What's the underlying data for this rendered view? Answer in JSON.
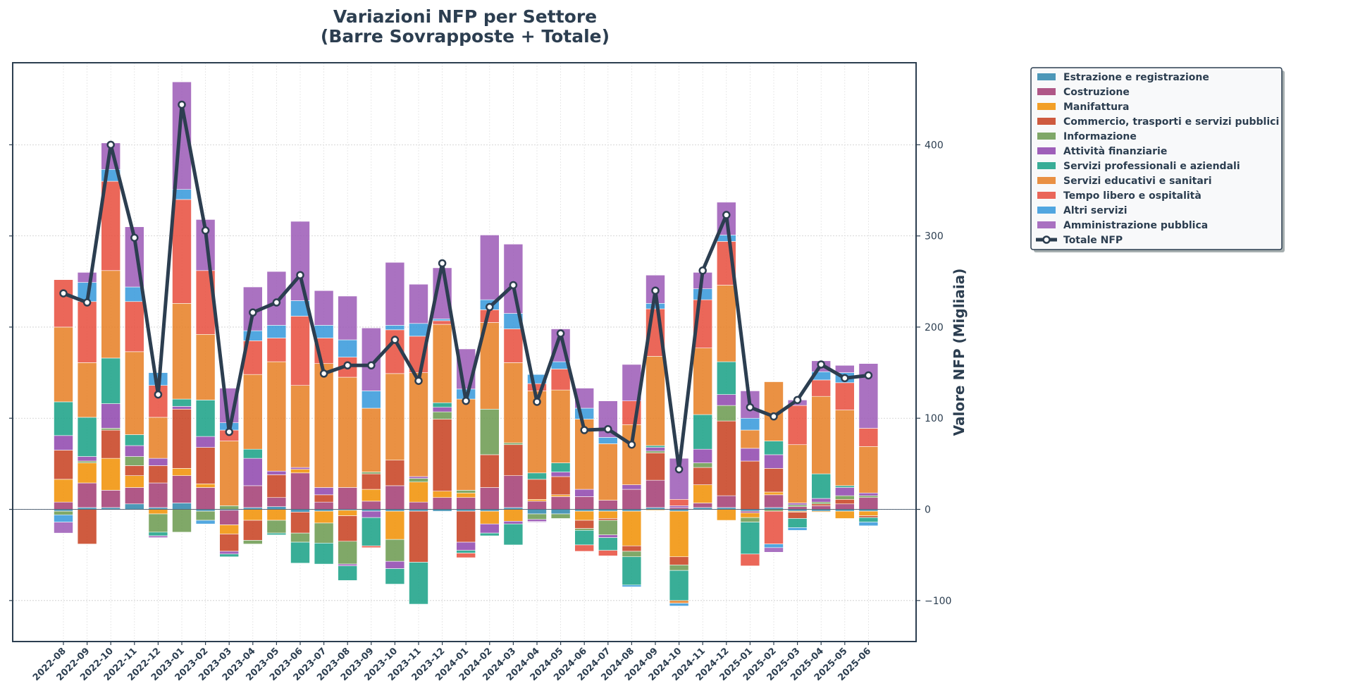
{
  "chart_data": {
    "type": "bar",
    "stacked": true,
    "title": [
      "Variazioni NFP per Settore",
      "(Barre Sovrapposte + Totale)"
    ],
    "xlabel": "",
    "ylabel": "Valore NFP (Migliaia)",
    "y_axis_position": "right",
    "ylim": [
      -145,
      490
    ],
    "yticks": [
      -100,
      0,
      100,
      200,
      300,
      400
    ],
    "ytick_labels": [
      "−100",
      "0",
      "100",
      "200",
      "300",
      "400"
    ],
    "grid": true,
    "legend_position": "outside-top-right",
    "categories": [
      "2022-08",
      "2022-09",
      "2022-10",
      "2022-11",
      "2022-12",
      "2023-01",
      "2023-02",
      "2023-03",
      "2023-04",
      "2023-05",
      "2023-06",
      "2023-07",
      "2023-08",
      "2023-09",
      "2023-10",
      "2023-11",
      "2023-12",
      "2024-01",
      "2024-02",
      "2024-03",
      "2024-04",
      "2024-05",
      "2024-06",
      "2024-07",
      "2024-08",
      "2024-09",
      "2024-10",
      "2024-11",
      "2024-12",
      "2025-01",
      "2025-02",
      "2025-03",
      "2025-04",
      "2025-05",
      "2025-06"
    ],
    "series": [
      {
        "name": "Estrazione e registrazione",
        "color": "#2e86ab",
        "values": [
          -2,
          2,
          2,
          6,
          2,
          7,
          -2,
          -1,
          2,
          3,
          -3,
          -2,
          -1,
          -2,
          -2,
          -2,
          -2,
          -2,
          -2,
          2,
          -5,
          -5,
          -2,
          -2,
          -2,
          2,
          -2,
          2,
          2,
          -2,
          2,
          -2,
          -2,
          -2,
          -2
        ]
      },
      {
        "name": "Costruzione",
        "color": "#a23b72",
        "values": [
          8,
          27,
          19,
          18,
          27,
          30,
          24,
          -16,
          24,
          10,
          40,
          8,
          24,
          9,
          26,
          8,
          13,
          13,
          24,
          35,
          9,
          14,
          14,
          10,
          22,
          30,
          2,
          5,
          13,
          -2,
          14,
          3,
          4,
          6,
          13
        ]
      },
      {
        "name": "Manifattura",
        "color": "#f18f01",
        "values": [
          25,
          22,
          35,
          13,
          -5,
          8,
          4,
          -10,
          -12,
          -12,
          4,
          -13,
          -6,
          13,
          -31,
          22,
          7,
          5,
          -14,
          -13,
          2,
          2,
          -10,
          -8,
          -38,
          -1,
          -50,
          20,
          -12,
          -5,
          3,
          -1,
          -1,
          -8,
          -5
        ]
      },
      {
        "name": "Commercio, trasporti e servizi pubblici",
        "color": "#c73e1d",
        "values": [
          32,
          -38,
          31,
          11,
          19,
          65,
          40,
          -19,
          -22,
          25,
          -23,
          8,
          -28,
          17,
          28,
          -56,
          79,
          -34,
          36,
          34,
          22,
          20,
          -9,
          -2,
          -6,
          30,
          -9,
          19,
          82,
          53,
          26,
          -7,
          2,
          5,
          -2
        ]
      },
      {
        "name": "Informazione",
        "color": "#6a994e",
        "values": [
          -4,
          2,
          2,
          10,
          -20,
          -25,
          -10,
          4,
          -4,
          -14,
          -10,
          -22,
          -25,
          2,
          -24,
          4,
          8,
          3,
          50,
          2,
          -6,
          -5,
          -2,
          -16,
          -6,
          2,
          -6,
          5,
          17,
          -5,
          -2,
          2,
          2,
          4,
          2
        ]
      },
      {
        "name": "Attività finanziarie",
        "color": "#8e44ad",
        "values": [
          16,
          5,
          27,
          12,
          8,
          3,
          12,
          -3,
          30,
          4,
          2,
          8,
          -2,
          -7,
          -8,
          2,
          5,
          -9,
          -10,
          -3,
          -2,
          5,
          8,
          -3,
          5,
          4,
          2,
          15,
          12,
          14,
          15,
          2,
          4,
          9,
          3
        ]
      },
      {
        "name": "Servizi professionali e aziendali",
        "color": "#16a085",
        "values": [
          37,
          43,
          50,
          12,
          -4,
          8,
          40,
          -3,
          10,
          -2,
          -23,
          -23,
          -16,
          -31,
          -17,
          -46,
          5,
          -3,
          -3,
          -23,
          7,
          10,
          -16,
          -14,
          -31,
          2,
          -33,
          38,
          36,
          -35,
          15,
          -10,
          27,
          2,
          -5
        ]
      },
      {
        "name": "Servizi educativi e sanitari",
        "color": "#e67e22",
        "values": [
          82,
          60,
          96,
          91,
          45,
          105,
          72,
          71,
          82,
          120,
          90,
          136,
          121,
          70,
          95,
          114,
          86,
          100,
          95,
          88,
          90,
          80,
          77,
          62,
          66,
          98,
          -3,
          73,
          84,
          20,
          65,
          64,
          85,
          83,
          51
        ]
      },
      {
        "name": "Tempo libero e ospitalità",
        "color": "#e74c3c",
        "values": [
          52,
          67,
          98,
          55,
          35,
          114,
          70,
          12,
          37,
          26,
          76,
          28,
          22,
          -2,
          48,
          40,
          4,
          -5,
          14,
          37,
          8,
          23,
          -7,
          -6,
          26,
          52,
          7,
          53,
          48,
          -13,
          -36,
          43,
          18,
          30,
          20
        ]
      },
      {
        "name": "Altri servizi",
        "color": "#3498db",
        "values": [
          -8,
          21,
          13,
          16,
          14,
          11,
          -4,
          8,
          11,
          14,
          17,
          14,
          19,
          19,
          5,
          14,
          2,
          11,
          11,
          17,
          10,
          8,
          12,
          7,
          -2,
          6,
          -3,
          12,
          7,
          13,
          -4,
          -3,
          9,
          11,
          -4
        ]
      },
      {
        "name": "Amministrazione pubblica",
        "color": "#9b59b6",
        "values": [
          -12,
          11,
          29,
          66,
          -2,
          118,
          56,
          38,
          48,
          59,
          87,
          38,
          48,
          69,
          69,
          43,
          56,
          44,
          71,
          76,
          -1,
          36,
          22,
          40,
          40,
          31,
          45,
          18,
          36,
          30,
          -5,
          6,
          12,
          8,
          71
        ]
      }
    ],
    "total": {
      "name": "Totale NFP",
      "color": "#2c3e50",
      "values": [
        237,
        227,
        400,
        298,
        126,
        444,
        306,
        85,
        216,
        227,
        257,
        149,
        158,
        158,
        186,
        141,
        270,
        119,
        222,
        246,
        118,
        193,
        87,
        88,
        71,
        240,
        44,
        262,
        323,
        112,
        102,
        120,
        159,
        144,
        147
      ]
    }
  }
}
